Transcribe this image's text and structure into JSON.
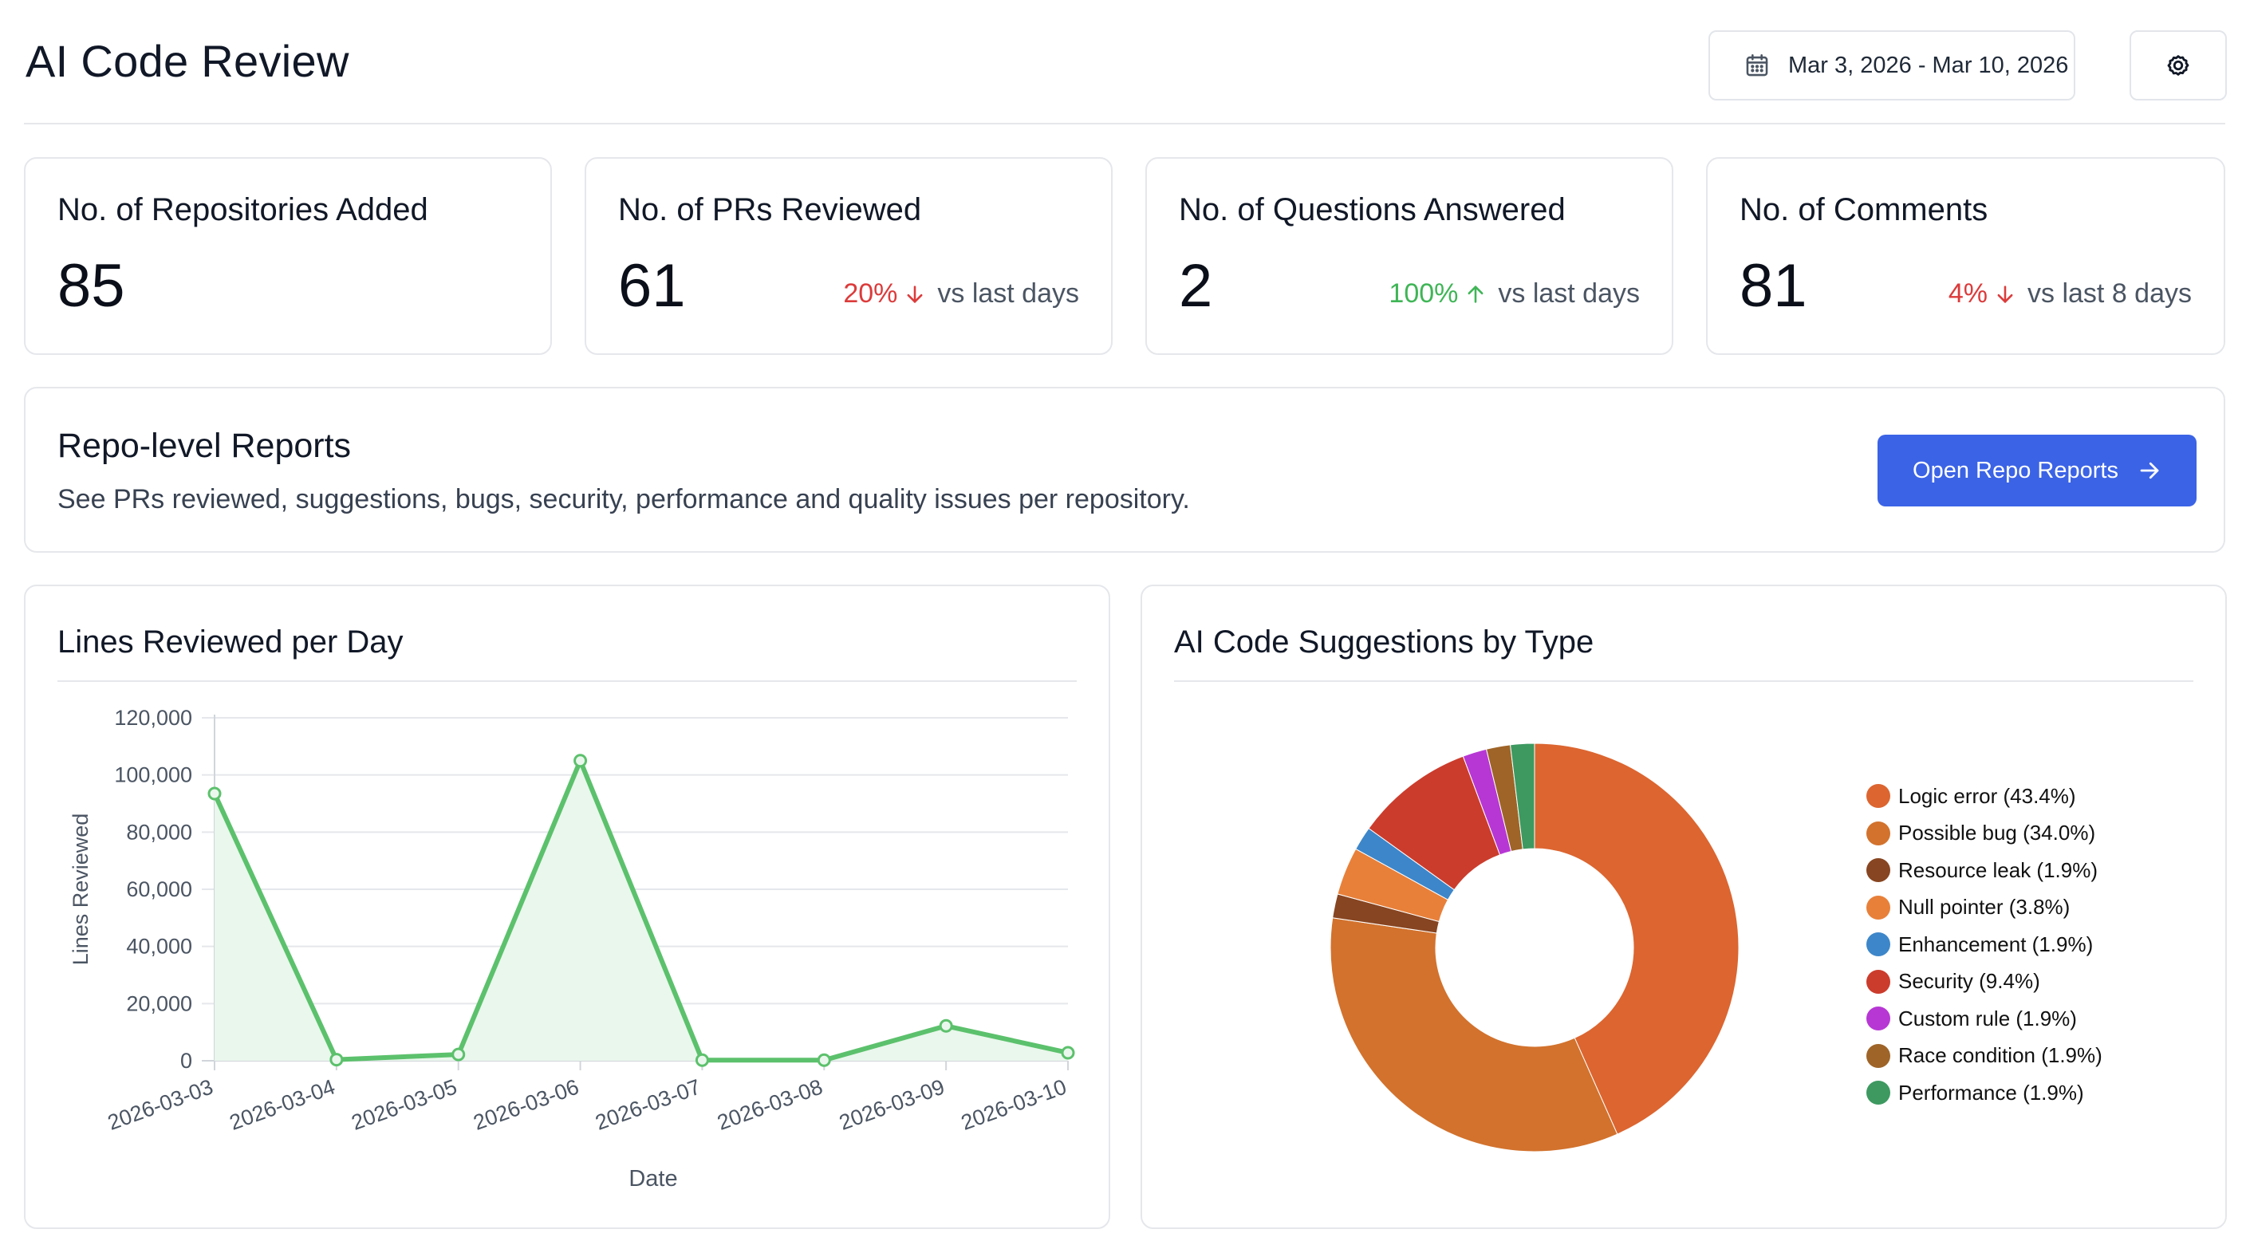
{
  "header": {
    "title": "AI Code Review",
    "date_range": "Mar 3, 2026 - Mar 10, 2026"
  },
  "stats": [
    {
      "label": "No. of Repositories Added",
      "value": "85"
    },
    {
      "label": "No. of PRs Reviewed",
      "value": "61",
      "pct": "20%",
      "direction": "down",
      "vs": "vs last days"
    },
    {
      "label": "No. of Questions Answered",
      "value": "2",
      "pct": "100%",
      "direction": "up",
      "vs": "vs last days"
    },
    {
      "label": "No. of Comments",
      "value": "81",
      "pct": "4%",
      "direction": "down",
      "vs": "vs last 8 days"
    }
  ],
  "repo_reports": {
    "title": "Repo-level Reports",
    "description": "See PRs reviewed, suggestions, bugs, security, performance and quality issues per repository.",
    "button_label": "Open Repo Reports"
  },
  "colors": {
    "accent": "#3b63e6",
    "trend_down": "#dc3b3b",
    "trend_up": "#3fb556",
    "line": "#5cc16c",
    "line_fill": "#e9f7ec"
  },
  "icons": {
    "date": "calendar-icon",
    "settings": "gear-icon",
    "open": "arrow-right-icon"
  },
  "chart_data": [
    {
      "type": "area",
      "title": "Lines Reviewed per Day",
      "xlabel": "Date",
      "ylabel": "Lines Reviewed",
      "x": [
        "2026-03-03",
        "2026-03-04",
        "2026-03-05",
        "2026-03-06",
        "2026-03-07",
        "2026-03-08",
        "2026-03-09",
        "2026-03-10"
      ],
      "values": [
        93500,
        400,
        2200,
        105000,
        200,
        200,
        12200,
        2800
      ],
      "ylim": [
        0,
        120000
      ],
      "yticks": [
        "120,000",
        "100,000",
        "80,000",
        "60,000",
        "40,000",
        "20,000",
        "0"
      ],
      "ytick_values": [
        120000,
        100000,
        80000,
        60000,
        40000,
        20000,
        0
      ],
      "grid": true
    },
    {
      "type": "pie",
      "title": "AI Code Suggestions by Type",
      "donut": true,
      "legend_position": "right",
      "slices": [
        {
          "label": "Logic error (43.4%)",
          "value": 43.4,
          "color": "#dc6530"
        },
        {
          "label": "Possible bug (34.0%)",
          "value": 34.0,
          "color": "#d2722d"
        },
        {
          "label": "Resource leak (1.9%)",
          "value": 1.9,
          "color": "#874521"
        },
        {
          "label": "Null pointer (3.8%)",
          "value": 3.8,
          "color": "#e8803a"
        },
        {
          "label": "Enhancement (1.9%)",
          "value": 1.9,
          "color": "#3d86c9"
        },
        {
          "label": "Security (9.4%)",
          "value": 9.4,
          "color": "#cb3c2d"
        },
        {
          "label": "Custom rule (1.9%)",
          "value": 1.9,
          "color": "#b737d4"
        },
        {
          "label": "Race condition (1.9%)",
          "value": 1.9,
          "color": "#9e6428"
        },
        {
          "label": "Performance (1.9%)",
          "value": 1.9,
          "color": "#3d9960"
        }
      ]
    }
  ]
}
